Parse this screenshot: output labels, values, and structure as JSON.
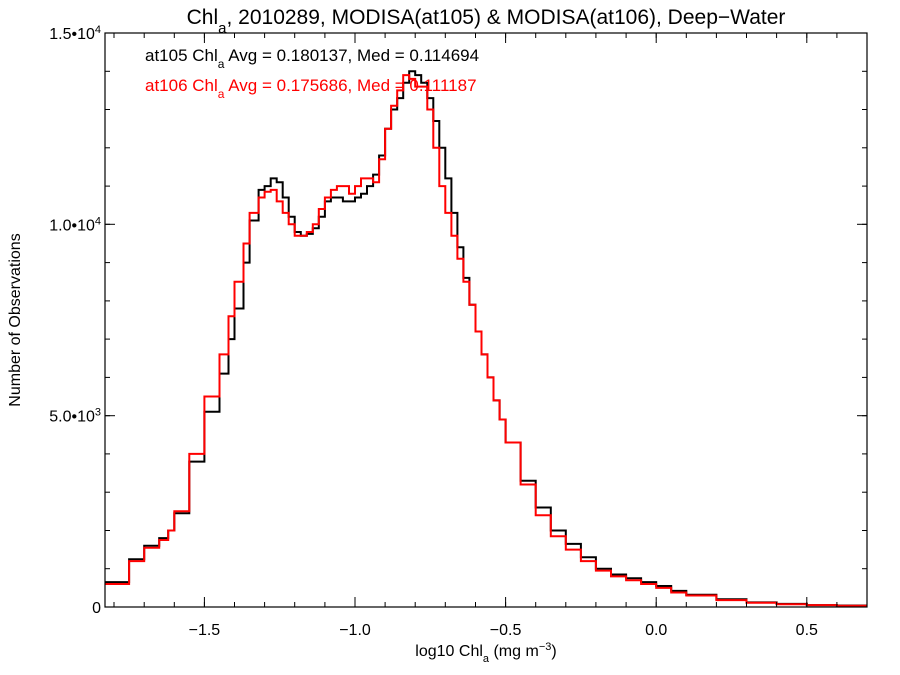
{
  "chart_data": {
    "type": "line",
    "title": {
      "parts": [
        {
          "text": "Chl",
          "sub": false
        },
        {
          "text": "a",
          "sub": true
        },
        {
          "text": ", 2010289, MODISA(at105) & MODISA(at106), Deep−Water",
          "sub": false
        }
      ]
    },
    "xlabel": {
      "parts": [
        {
          "text": "log10 Chl",
          "sub": false
        },
        {
          "text": "a",
          "sub": true
        },
        {
          "text": " (mg m",
          "sub": false
        },
        {
          "text": "−3",
          "sup": true
        },
        {
          "text": ")",
          "sub": false
        }
      ]
    },
    "ylabel": "Number of Observations",
    "xlim": [
      -1.83,
      0.7
    ],
    "ylim": [
      0,
      15000
    ],
    "x_ticks": [
      {
        "value": -1.5,
        "label": "−1.5"
      },
      {
        "value": -1.0,
        "label": "−1.0"
      },
      {
        "value": -0.5,
        "label": "−0.5"
      },
      {
        "value": 0.0,
        "label": "0.0"
      },
      {
        "value": 0.5,
        "label": "0.5"
      }
    ],
    "y_ticks": [
      {
        "value": 0,
        "mant": "0",
        "exp": ""
      },
      {
        "value": 5000,
        "mant": "5.0•10",
        "exp": "3"
      },
      {
        "value": 10000,
        "mant": "1.0•10",
        "exp": "4"
      },
      {
        "value": 15000,
        "mant": "1.5•10",
        "exp": "4"
      }
    ],
    "x_minor_step": 0.1,
    "y_minor_step": 1000,
    "annotations": [
      {
        "color": "#000000",
        "parts": [
          {
            "text": "at105 Chl",
            "sub": false
          },
          {
            "text": "a",
            "sub": true
          },
          {
            "text": " Avg = 0.180137, Med = 0.114694",
            "sub": false
          }
        ]
      },
      {
        "color": "#ff0000",
        "parts": [
          {
            "text": "at106 Chl",
            "sub": false
          },
          {
            "text": "a",
            "sub": true
          },
          {
            "text": " Avg = 0.175686, Med = 0.111187",
            "sub": false
          }
        ]
      }
    ],
    "series": [
      {
        "color": "#000000",
        "x": [
          -1.83,
          -1.75,
          -1.7,
          -1.65,
          -1.62,
          -1.6,
          -1.55,
          -1.5,
          -1.45,
          -1.42,
          -1.4,
          -1.37,
          -1.35,
          -1.32,
          -1.3,
          -1.28,
          -1.26,
          -1.24,
          -1.22,
          -1.2,
          -1.18,
          -1.16,
          -1.14,
          -1.12,
          -1.1,
          -1.08,
          -1.06,
          -1.04,
          -1.02,
          -1.0,
          -0.98,
          -0.96,
          -0.94,
          -0.92,
          -0.9,
          -0.88,
          -0.86,
          -0.84,
          -0.82,
          -0.8,
          -0.78,
          -0.76,
          -0.74,
          -0.72,
          -0.7,
          -0.68,
          -0.66,
          -0.64,
          -0.62,
          -0.6,
          -0.58,
          -0.56,
          -0.54,
          -0.52,
          -0.5,
          -0.45,
          -0.4,
          -0.35,
          -0.3,
          -0.25,
          -0.2,
          -0.15,
          -0.1,
          -0.05,
          0.0,
          0.05,
          0.1,
          0.2,
          0.3,
          0.4,
          0.5,
          0.6,
          0.7
        ],
        "y": [
          650,
          1250,
          1600,
          1800,
          2000,
          2450,
          3800,
          5100,
          6100,
          7000,
          7800,
          9000,
          10100,
          10900,
          11000,
          11200,
          11100,
          10700,
          10200,
          9800,
          9700,
          9750,
          9900,
          10200,
          10600,
          10700,
          10700,
          10600,
          10600,
          10700,
          10800,
          11000,
          11300,
          11800,
          12500,
          13000,
          13300,
          13700,
          14000,
          13900,
          13700,
          13300,
          12700,
          12000,
          11200,
          10300,
          9400,
          8600,
          7900,
          7200,
          6600,
          6000,
          5400,
          4900,
          4300,
          3300,
          2600,
          2000,
          1650,
          1300,
          1000,
          850,
          750,
          650,
          550,
          420,
          320,
          200,
          120,
          80,
          50,
          40,
          30
        ]
      },
      {
        "color": "#ff0000",
        "x": [
          -1.83,
          -1.75,
          -1.7,
          -1.65,
          -1.62,
          -1.6,
          -1.55,
          -1.5,
          -1.45,
          -1.42,
          -1.4,
          -1.37,
          -1.35,
          -1.32,
          -1.3,
          -1.28,
          -1.26,
          -1.24,
          -1.22,
          -1.2,
          -1.18,
          -1.16,
          -1.14,
          -1.12,
          -1.1,
          -1.08,
          -1.06,
          -1.04,
          -1.02,
          -1.0,
          -0.98,
          -0.96,
          -0.94,
          -0.92,
          -0.9,
          -0.88,
          -0.86,
          -0.84,
          -0.82,
          -0.8,
          -0.78,
          -0.76,
          -0.74,
          -0.72,
          -0.7,
          -0.68,
          -0.66,
          -0.64,
          -0.62,
          -0.6,
          -0.58,
          -0.56,
          -0.54,
          -0.52,
          -0.5,
          -0.45,
          -0.4,
          -0.35,
          -0.3,
          -0.25,
          -0.2,
          -0.15,
          -0.1,
          -0.05,
          0.0,
          0.05,
          0.1,
          0.2,
          0.3,
          0.4,
          0.5,
          0.6,
          0.7
        ],
        "y": [
          600,
          1200,
          1550,
          1750,
          2000,
          2500,
          4000,
          5500,
          6600,
          7600,
          8500,
          9500,
          10300,
          10700,
          10850,
          10900,
          10600,
          10300,
          10000,
          9700,
          9700,
          9800,
          10000,
          10400,
          10700,
          10900,
          11000,
          11000,
          10800,
          11000,
          11200,
          11200,
          11100,
          11700,
          12500,
          13100,
          13500,
          13900,
          13800,
          13600,
          13600,
          13000,
          12000,
          11000,
          10300,
          9700,
          9100,
          8500,
          7900,
          7200,
          6600,
          6000,
          5400,
          4900,
          4300,
          3200,
          2400,
          1850,
          1500,
          1200,
          950,
          800,
          700,
          600,
          500,
          380,
          300,
          180,
          110,
          70,
          50,
          35,
          25
        ]
      }
    ]
  }
}
